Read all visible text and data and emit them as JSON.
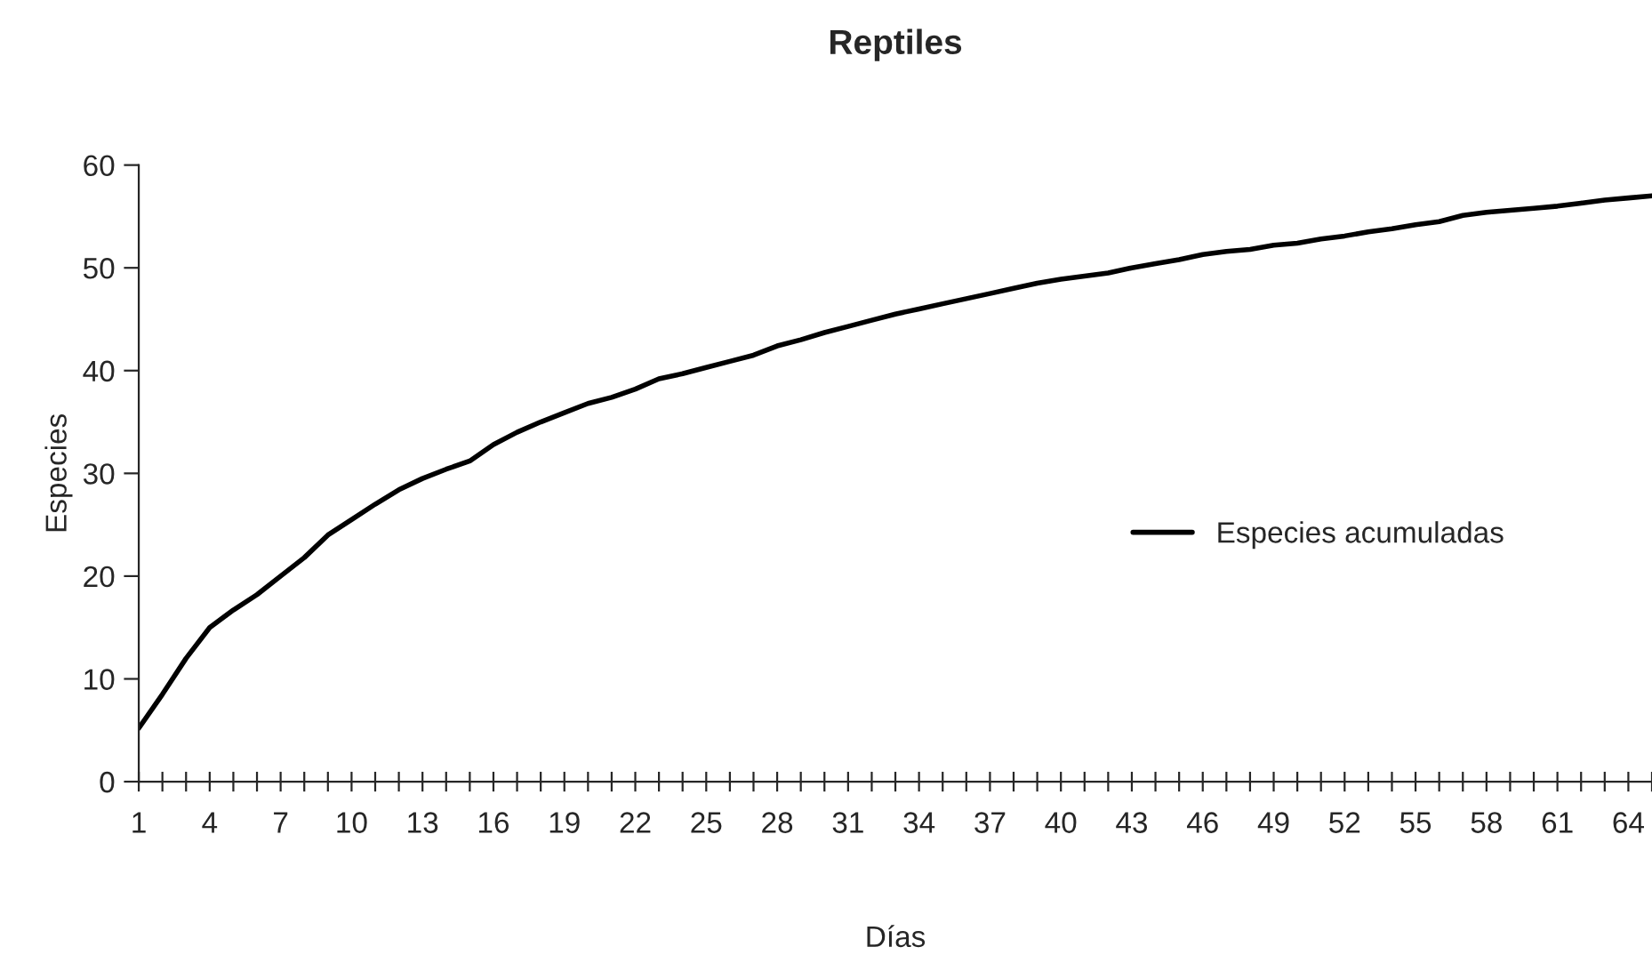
{
  "chart_data": {
    "type": "line",
    "title": "Reptiles",
    "xlabel": "Días",
    "ylabel": "Especies",
    "x": [
      1,
      2,
      3,
      4,
      5,
      6,
      7,
      8,
      9,
      10,
      11,
      12,
      13,
      14,
      15,
      16,
      17,
      18,
      19,
      20,
      21,
      22,
      23,
      24,
      25,
      26,
      27,
      28,
      29,
      30,
      31,
      32,
      33,
      34,
      35,
      36,
      37,
      38,
      39,
      40,
      41,
      42,
      43,
      44,
      45,
      46,
      47,
      48,
      49,
      50,
      51,
      52,
      53,
      54,
      55,
      56,
      57,
      58,
      59,
      60,
      61,
      62,
      63,
      64,
      65
    ],
    "series": [
      {
        "name": "Especies acumuladas",
        "color": "#000000",
        "values": [
          5.2,
          8.5,
          12,
          15,
          16.7,
          18.2,
          20,
          21.8,
          24,
          25.5,
          27,
          28.4,
          29.5,
          30.4,
          31.2,
          32.8,
          34,
          35,
          35.9,
          36.8,
          37.4,
          38.2,
          39.2,
          39.7,
          40.3,
          40.9,
          41.5,
          42.4,
          43,
          43.7,
          44.3,
          44.9,
          45.5,
          46,
          46.5,
          47,
          47.5,
          48,
          48.5,
          48.9,
          49.2,
          49.5,
          50,
          50.4,
          50.8,
          51.3,
          51.6,
          51.8,
          52.2,
          52.4,
          52.8,
          53.1,
          53.5,
          53.8,
          54.2,
          54.5,
          55.1,
          55.4,
          55.6,
          55.8,
          56,
          56.3,
          56.6,
          56.8,
          57
        ]
      }
    ],
    "xlim": [
      1,
      65
    ],
    "xticks": [
      1,
      {
        "value": 2,
        "label": null
      },
      {
        "value": 3,
        "label": null
      },
      4,
      {
        "value": 5,
        "label": null
      },
      {
        "value": 6,
        "label": null
      },
      7,
      {
        "value": 8,
        "label": null
      },
      {
        "value": 9,
        "label": null
      },
      10,
      {
        "value": 11,
        "label": null
      },
      {
        "value": 12,
        "label": null
      },
      13,
      {
        "value": 14,
        "label": null
      },
      {
        "value": 15,
        "label": null
      },
      16,
      {
        "value": 17,
        "label": null
      },
      {
        "value": 18,
        "label": null
      },
      19,
      {
        "value": 20,
        "label": null
      },
      {
        "value": 21,
        "label": null
      },
      22,
      {
        "value": 23,
        "label": null
      },
      {
        "value": 24,
        "label": null
      },
      25,
      {
        "value": 26,
        "label": null
      },
      {
        "value": 27,
        "label": null
      },
      28,
      {
        "value": 29,
        "label": null
      },
      {
        "value": 30,
        "label": null
      },
      31,
      {
        "value": 32,
        "label": null
      },
      {
        "value": 33,
        "label": null
      },
      34,
      {
        "value": 35,
        "label": null
      },
      {
        "value": 36,
        "label": null
      },
      37,
      {
        "value": 38,
        "label": null
      },
      {
        "value": 39,
        "label": null
      },
      40,
      {
        "value": 41,
        "label": null
      },
      {
        "value": 42,
        "label": null
      },
      43,
      {
        "value": 44,
        "label": null
      },
      {
        "value": 45,
        "label": null
      },
      46,
      {
        "value": 47,
        "label": null
      },
      {
        "value": 48,
        "label": null
      },
      49,
      {
        "value": 50,
        "label": null
      },
      {
        "value": 51,
        "label": null
      },
      52,
      {
        "value": 53,
        "label": null
      },
      {
        "value": 54,
        "label": null
      },
      55,
      {
        "value": 56,
        "label": null
      },
      {
        "value": 57,
        "label": null
      },
      58,
      {
        "value": 59,
        "label": null
      },
      {
        "value": 60,
        "label": null
      },
      61,
      {
        "value": 62,
        "label": null
      },
      {
        "value": 63,
        "label": null
      },
      64,
      {
        "value": 65,
        "label": null
      }
    ],
    "ylim": [
      0,
      60
    ],
    "yticks": [
      0,
      10,
      20,
      30,
      40,
      50,
      60
    ],
    "grid": false,
    "legend": "right",
    "marker": "none",
    "line_style": "solid"
  }
}
